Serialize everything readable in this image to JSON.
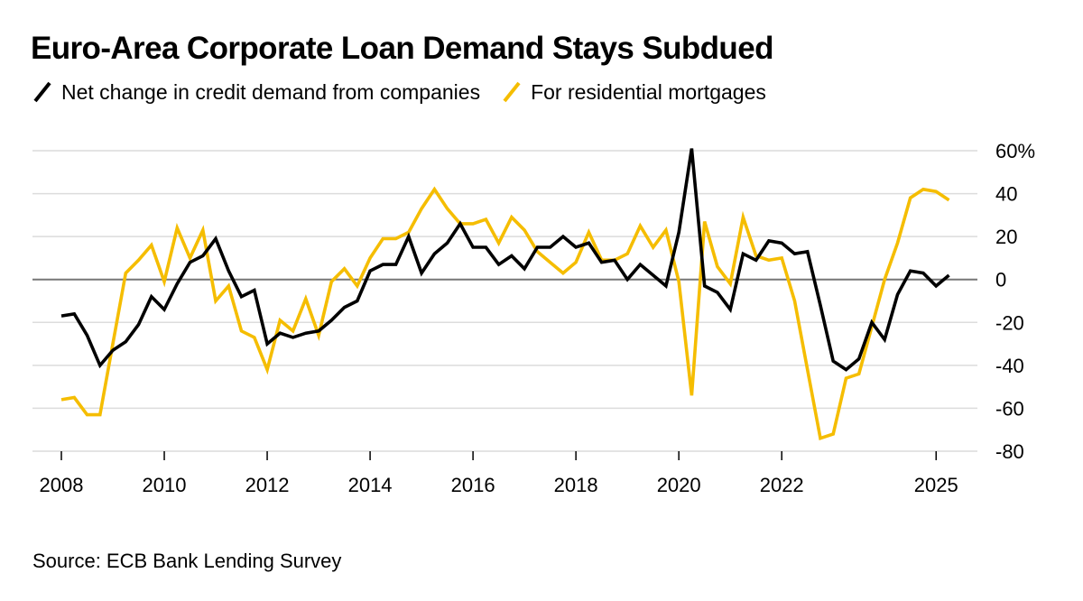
{
  "chart_data": {
    "type": "line",
    "title": "Euro-Area Corporate Loan Demand Stays Subdued",
    "source": "Source: ECB Bank Lending Survey",
    "xlabel": "",
    "ylabel": "",
    "x_range": [
      2008,
      2025.75
    ],
    "ylim": [
      -80,
      60
    ],
    "y_ticks": [
      {
        "value": 60,
        "label": "60%"
      },
      {
        "value": 40,
        "label": "40"
      },
      {
        "value": 20,
        "label": "20"
      },
      {
        "value": 0,
        "label": "0"
      },
      {
        "value": -20,
        "label": "-20"
      },
      {
        "value": -40,
        "label": "-40"
      },
      {
        "value": -60,
        "label": "-60"
      },
      {
        "value": -80,
        "label": "-80"
      }
    ],
    "x_ticks": [
      {
        "value": 2008,
        "label": "2008"
      },
      {
        "value": 2010,
        "label": "2010"
      },
      {
        "value": 2012,
        "label": "2012"
      },
      {
        "value": 2014,
        "label": "2014"
      },
      {
        "value": 2016,
        "label": "2016"
      },
      {
        "value": 2018,
        "label": "2018"
      },
      {
        "value": 2020,
        "label": "2020"
      },
      {
        "value": 2022,
        "label": "2022"
      },
      {
        "value": 2025,
        "label": "2025"
      }
    ],
    "grid": true,
    "legend_position": "top-left",
    "series": [
      {
        "name": "Net change in credit demand from companies",
        "color": "#000000",
        "x": [
          2008.0,
          2008.25,
          2008.5,
          2008.75,
          2009.0,
          2009.25,
          2009.5,
          2009.75,
          2010.0,
          2010.25,
          2010.5,
          2010.75,
          2011.0,
          2011.25,
          2011.5,
          2011.75,
          2012.0,
          2012.25,
          2012.5,
          2012.75,
          2013.0,
          2013.25,
          2013.5,
          2013.75,
          2014.0,
          2014.25,
          2014.5,
          2014.75,
          2015.0,
          2015.25,
          2015.5,
          2015.75,
          2016.0,
          2016.25,
          2016.5,
          2016.75,
          2017.0,
          2017.25,
          2017.5,
          2017.75,
          2018.0,
          2018.25,
          2018.5,
          2018.75,
          2019.0,
          2019.25,
          2019.5,
          2019.75,
          2020.0,
          2020.25,
          2020.5,
          2020.75,
          2021.0,
          2021.25,
          2021.5,
          2021.75,
          2022.0,
          2022.25,
          2022.5,
          2022.75,
          2023.0,
          2023.25,
          2023.5,
          2023.75,
          2024.0,
          2024.25,
          2024.5,
          2024.75,
          2025.0,
          2025.25
        ],
        "values": [
          -17,
          -16,
          -26,
          -40,
          -33,
          -29,
          -21,
          -8,
          -14,
          -2,
          8,
          11,
          19,
          4,
          -8,
          -5,
          -30,
          -25,
          -27,
          -25,
          -24,
          -19,
          -13,
          -10,
          4,
          7,
          7,
          20,
          3,
          12,
          17,
          26,
          15,
          15,
          7,
          11,
          5,
          15,
          15,
          20,
          15,
          17,
          8,
          9,
          0,
          7,
          2,
          -3,
          22,
          61,
          -3,
          -6,
          -14,
          12,
          9,
          18,
          17,
          12,
          13,
          -12,
          -38,
          -42,
          -37,
          -20,
          -28,
          -7,
          4,
          3,
          -3,
          2
        ]
      },
      {
        "name": "For residential mortgages",
        "color": "#f5bd00",
        "x": [
          2008.0,
          2008.25,
          2008.5,
          2008.75,
          2009.0,
          2009.25,
          2009.5,
          2009.75,
          2010.0,
          2010.25,
          2010.5,
          2010.75,
          2011.0,
          2011.25,
          2011.5,
          2011.75,
          2012.0,
          2012.25,
          2012.5,
          2012.75,
          2013.0,
          2013.25,
          2013.5,
          2013.75,
          2014.0,
          2014.25,
          2014.5,
          2014.75,
          2015.0,
          2015.25,
          2015.5,
          2015.75,
          2016.0,
          2016.25,
          2016.5,
          2016.75,
          2017.0,
          2017.25,
          2017.5,
          2017.75,
          2018.0,
          2018.25,
          2018.5,
          2018.75,
          2019.0,
          2019.25,
          2019.5,
          2019.75,
          2020.0,
          2020.25,
          2020.5,
          2020.75,
          2021.0,
          2021.25,
          2021.5,
          2021.75,
          2022.0,
          2022.25,
          2022.5,
          2022.75,
          2023.0,
          2023.25,
          2023.5,
          2023.75,
          2024.0,
          2024.25,
          2024.5,
          2024.75,
          2025.0,
          2025.25
        ],
        "values": [
          -56,
          -55,
          -63,
          -63,
          -30,
          3,
          9,
          16,
          -1,
          24,
          10,
          23,
          -10,
          -3,
          -24,
          -27,
          -42,
          -19,
          -24,
          -9,
          -26,
          -1,
          5,
          -3,
          10,
          19,
          19,
          22,
          33,
          42,
          33,
          26,
          26,
          28,
          17,
          29,
          23,
          13,
          8,
          3,
          8,
          22,
          9,
          9,
          12,
          25,
          15,
          23,
          -1,
          -54,
          27,
          6,
          -2,
          29,
          11,
          9,
          10,
          -10,
          -42,
          -74,
          -72,
          -46,
          -44,
          -22,
          0,
          17,
          38,
          42,
          41,
          37
        ]
      }
    ]
  }
}
